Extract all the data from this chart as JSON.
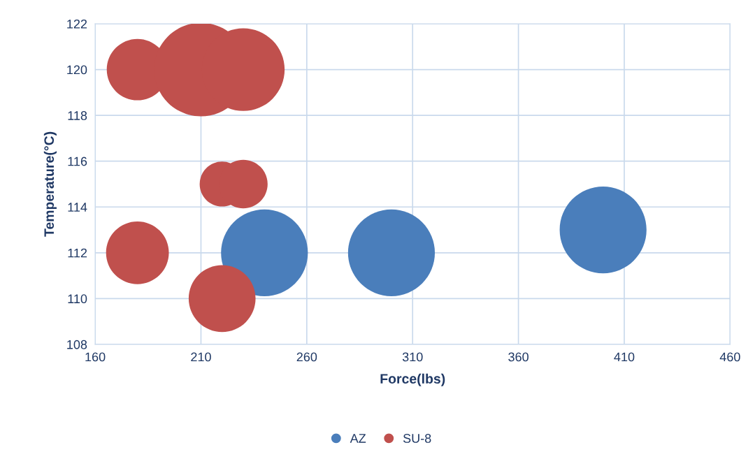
{
  "chart_data": {
    "type": "bubble",
    "xlabel": "Force(lbs)",
    "ylabel": "Temperature(°C)",
    "xlim": [
      160,
      460
    ],
    "xticks": [
      160,
      210,
      260,
      310,
      360,
      410,
      460
    ],
    "ylim": [
      108,
      122
    ],
    "yticks": [
      108,
      110,
      112,
      114,
      116,
      118,
      120,
      122
    ],
    "grid": true,
    "legend": "bottom",
    "series": [
      {
        "name": "AZ",
        "color": "#4a7ebb",
        "x": [
          240,
          300,
          400
        ],
        "values": [
          112,
          112,
          113
        ],
        "sizes": [
          0.86,
          0.86,
          0.86
        ]
      },
      {
        "name": "SU-8",
        "color": "#c0504d",
        "x": [
          180,
          210,
          230,
          220,
          230,
          180,
          220
        ],
        "values": [
          120,
          120,
          120,
          115,
          115,
          112,
          110
        ],
        "sizes": [
          0.43,
          1,
          0.78,
          0.23,
          0.27,
          0.45,
          0.51
        ]
      }
    ]
  }
}
